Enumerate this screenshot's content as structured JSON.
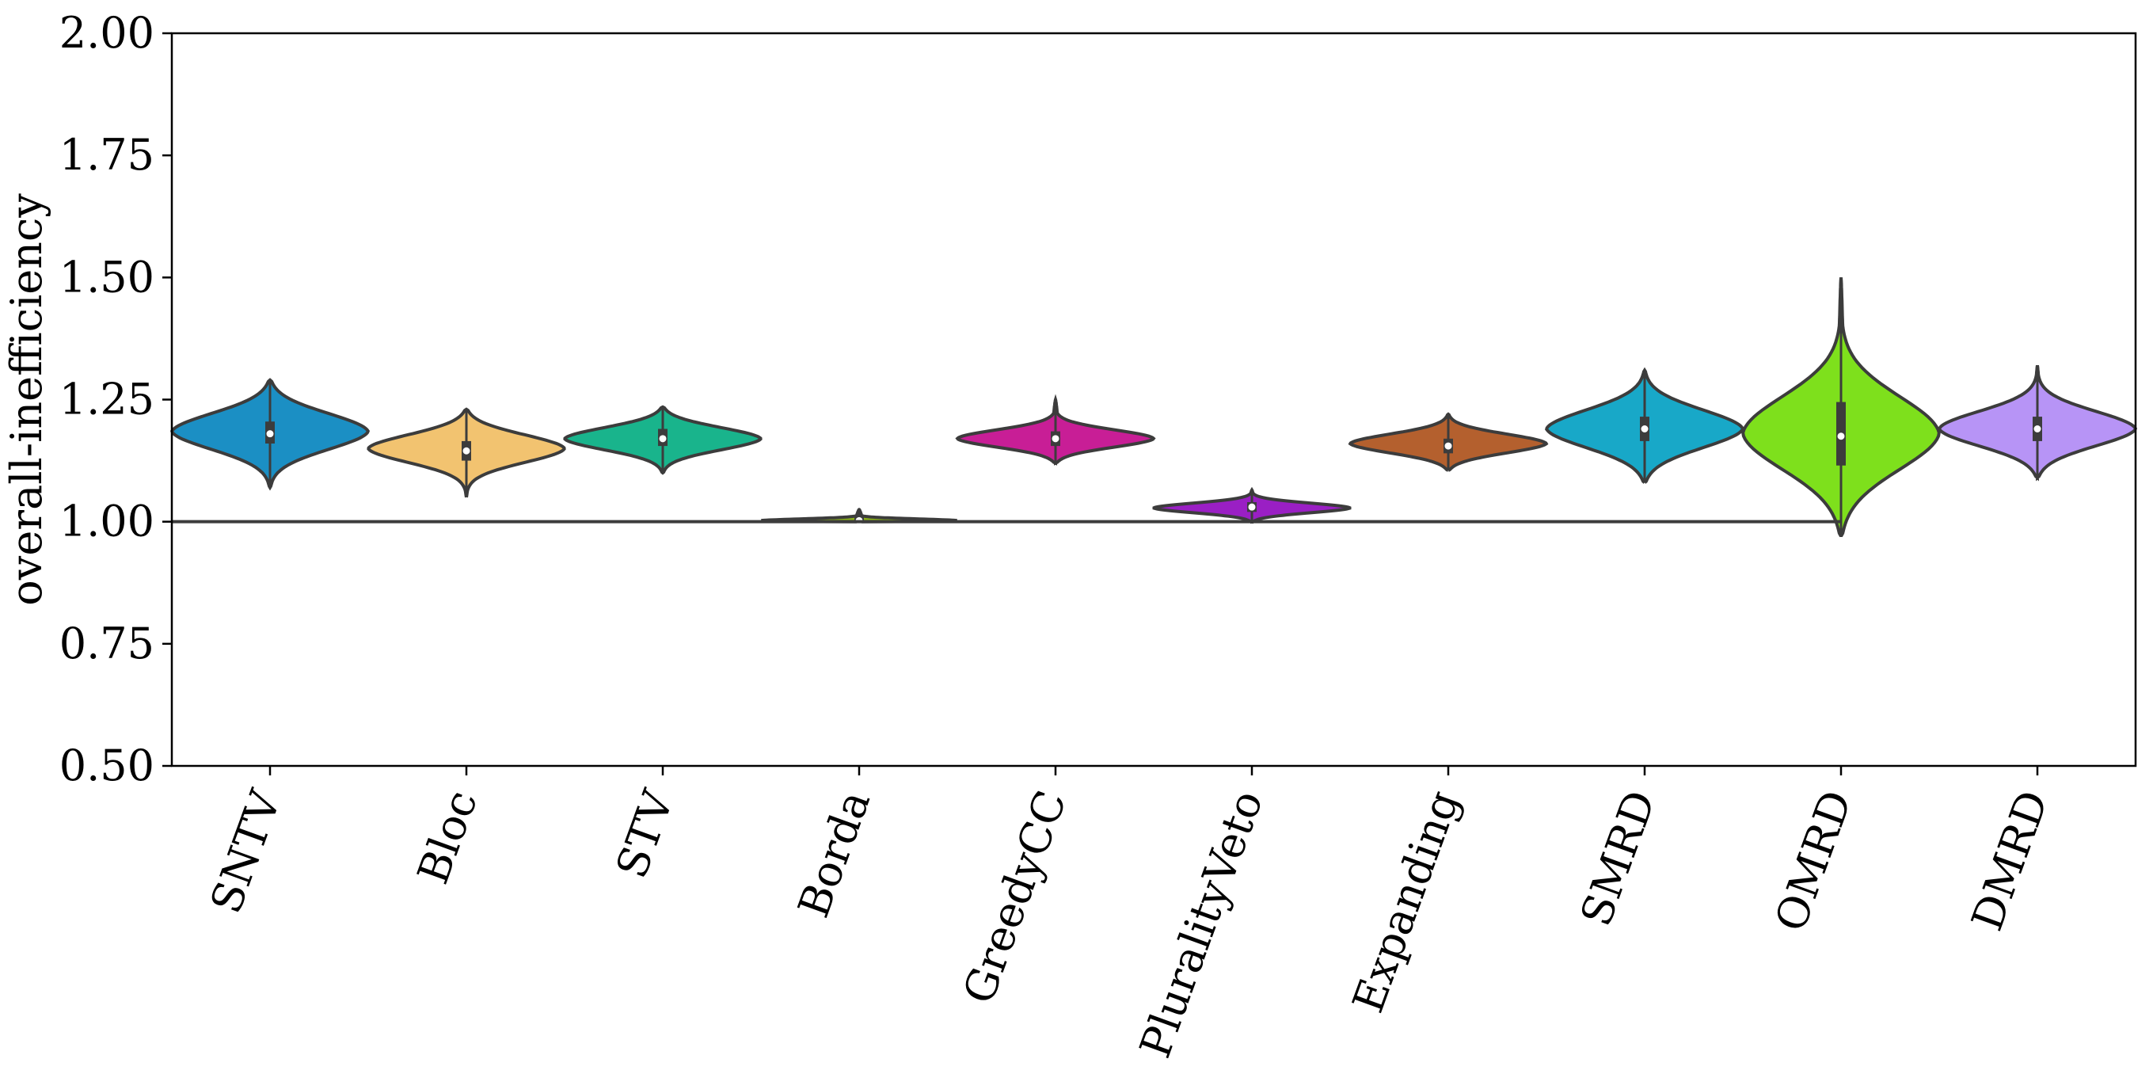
{
  "chart_data": {
    "type": "violin",
    "title": "",
    "xlabel": "",
    "ylabel": "overall-inefficiency",
    "ylim": [
      0.5,
      2.0
    ],
    "yticks": [
      "0.50",
      "0.75",
      "1.00",
      "1.25",
      "1.50",
      "1.75",
      "2.00"
    ],
    "grid": false,
    "reference_line": 1.0,
    "categories": [
      "SNTV",
      "Bloc",
      "STV",
      "Borda",
      "GreedyCC",
      "PluralityVeto",
      "Expanding",
      "SMRD",
      "OMRD",
      "DMRD"
    ],
    "series": [
      {
        "category": "SNTV",
        "color": "#1b8fc4",
        "min": 1.07,
        "q1": 1.16,
        "median": 1.18,
        "q3": 1.205,
        "max": 1.29,
        "peak": 1.185
      },
      {
        "category": "Bloc",
        "color": "#f2c370",
        "min": 1.05,
        "q1": 1.125,
        "median": 1.145,
        "q3": 1.165,
        "max": 1.23,
        "peak": 1.15
      },
      {
        "category": "STV",
        "color": "#19b48c",
        "min": 1.1,
        "q1": 1.155,
        "median": 1.17,
        "q3": 1.19,
        "max": 1.235,
        "peak": 1.17
      },
      {
        "category": "Borda",
        "color": "#8cb418",
        "min": 1.0,
        "q1": 1.0,
        "median": 1.002,
        "q3": 1.012,
        "max": 1.025,
        "peak": 1.002
      },
      {
        "category": "GreedyCC",
        "color": "#c81e96",
        "min": 1.12,
        "q1": 1.155,
        "median": 1.17,
        "q3": 1.185,
        "max": 1.25,
        "peak": 1.17
      },
      {
        "category": "PluralityVeto",
        "color": "#9a1fc4",
        "min": 1.0,
        "q1": 1.02,
        "median": 1.03,
        "q3": 1.04,
        "max": 1.065,
        "peak": 1.028
      },
      {
        "category": "Expanding",
        "color": "#b4602e",
        "min": 1.105,
        "q1": 1.14,
        "median": 1.155,
        "q3": 1.17,
        "max": 1.22,
        "peak": 1.16
      },
      {
        "category": "SMRD",
        "color": "#18a8c8",
        "min": 1.08,
        "q1": 1.165,
        "median": 1.19,
        "q3": 1.215,
        "max": 1.31,
        "peak": 1.19
      },
      {
        "category": "OMRD",
        "color": "#7ee01c",
        "min": 0.97,
        "q1": 1.115,
        "median": 1.175,
        "q3": 1.245,
        "max": 1.5,
        "peak": 1.18
      },
      {
        "category": "DMRD",
        "color": "#b794f6",
        "min": 1.09,
        "q1": 1.165,
        "median": 1.19,
        "q3": 1.215,
        "max": 1.32,
        "peak": 1.19
      }
    ]
  }
}
